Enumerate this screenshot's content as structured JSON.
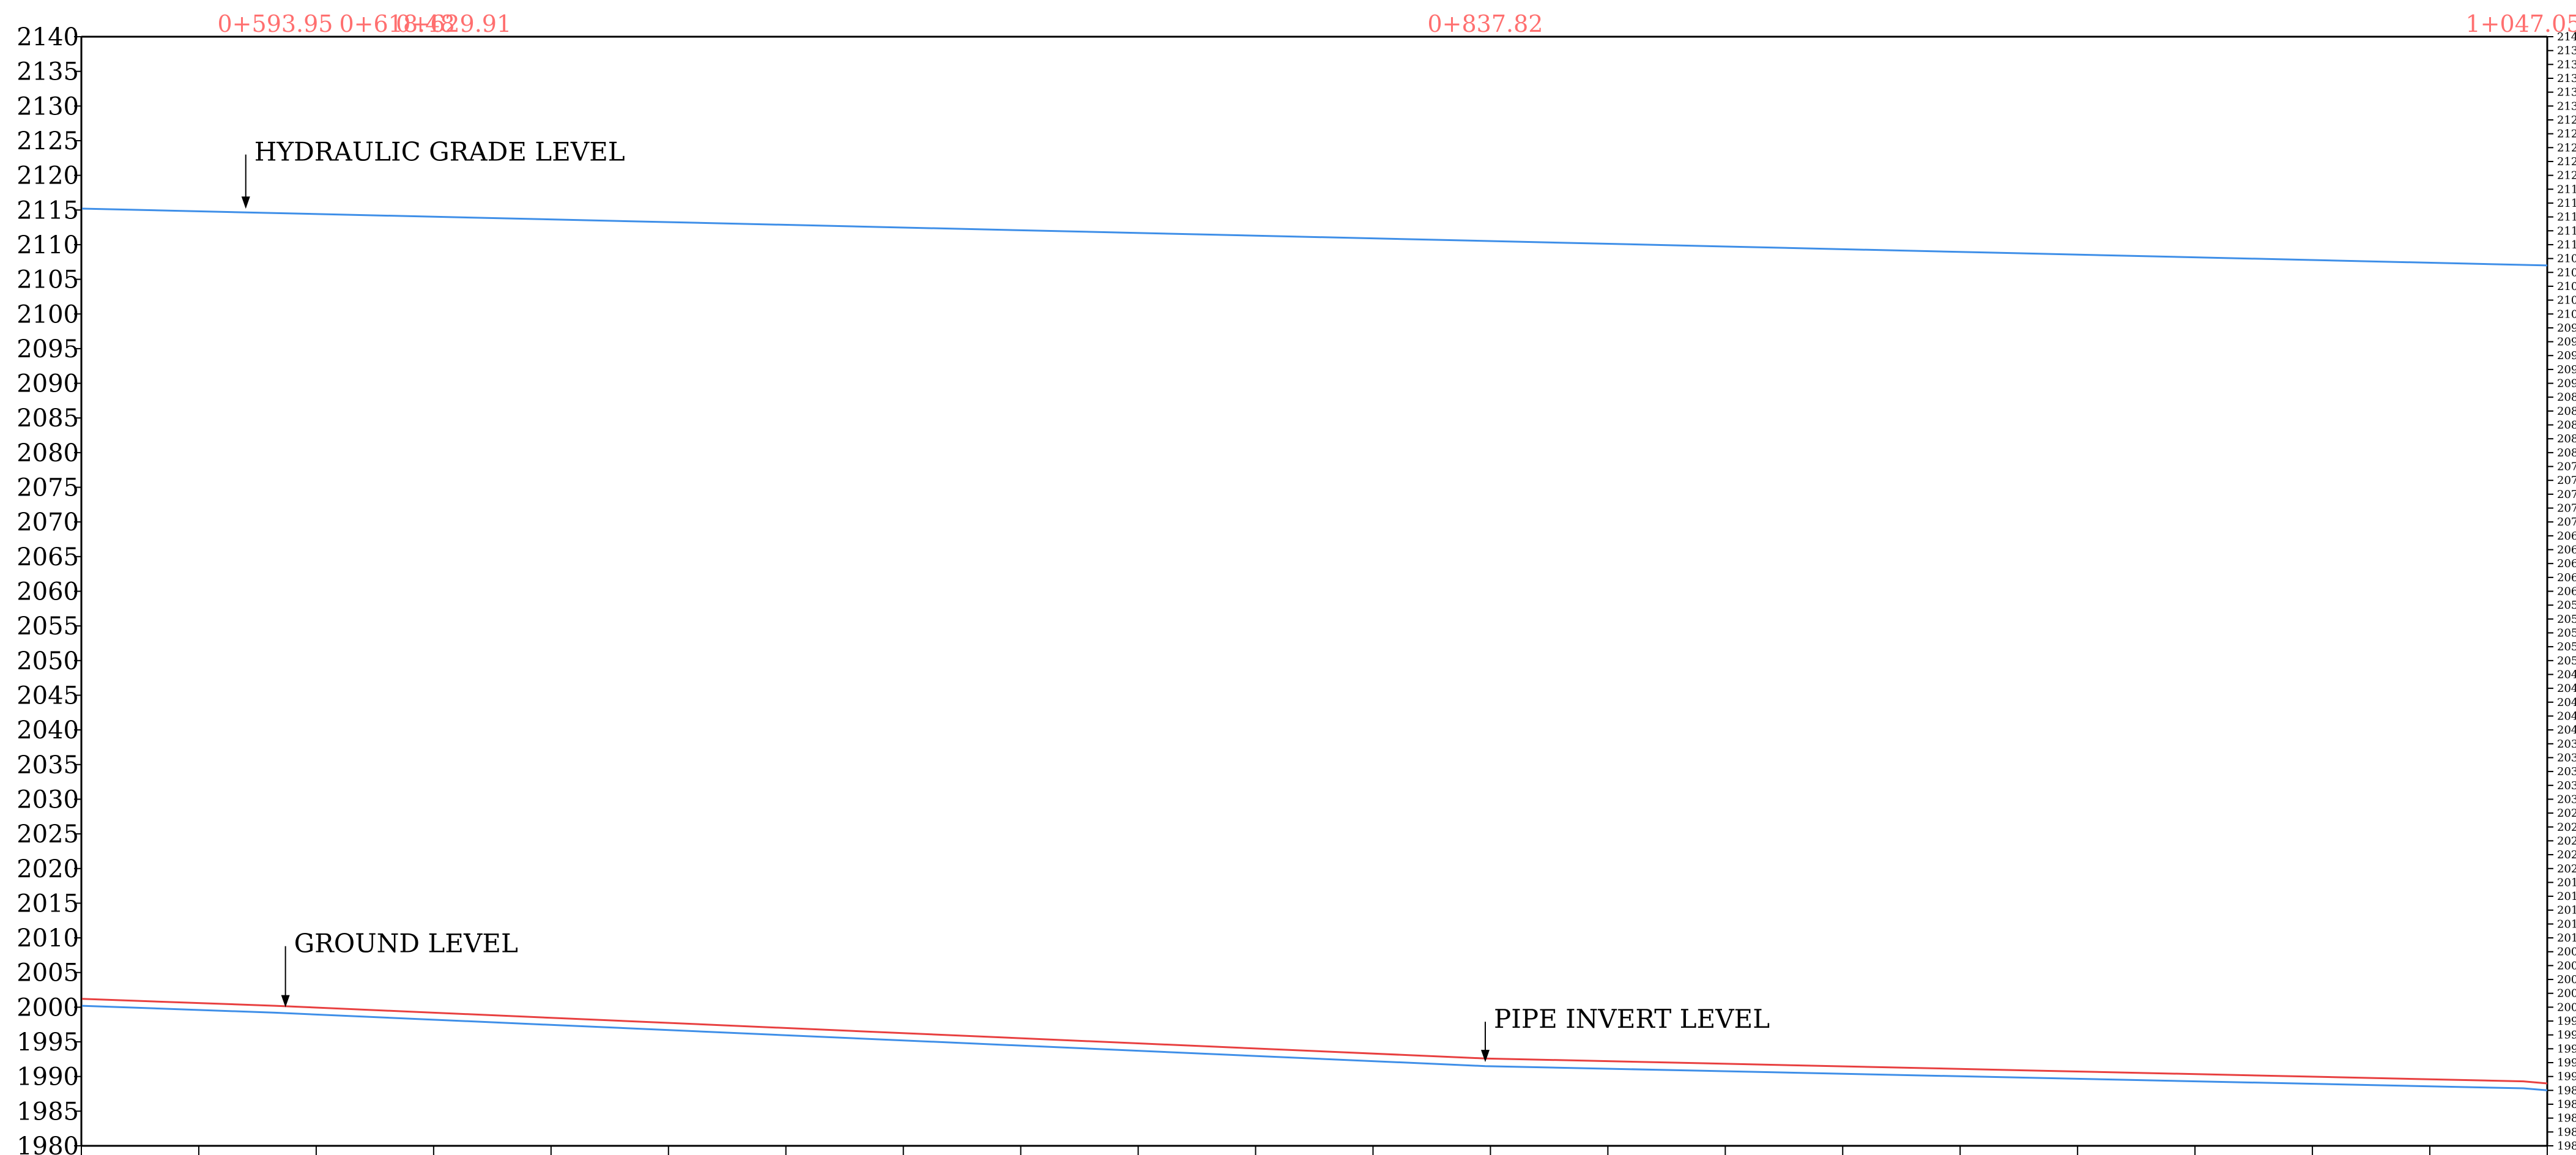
{
  "chart_data": {
    "type": "line",
    "title": "",
    "xlabel": "",
    "ylabel": "",
    "ylim": [
      1980,
      2140
    ],
    "y_major_step": 5,
    "y_minor_step": 2,
    "grid": false,
    "xlim": [
      593.95,
      1047.05
    ],
    "x_tick_count": 21,
    "stations": [
      {
        "label": "0+593.95",
        "x": 593.95
      },
      {
        "label": "0+618.48",
        "x": 618.48
      },
      {
        "label": "0+629.91",
        "x": 629.91
      },
      {
        "label": "0+837.82",
        "x": 837.82
      },
      {
        "label": "1+047.05",
        "x": 1047.05
      }
    ],
    "series": [
      {
        "key": "hgl",
        "color": "#3f8fe8",
        "x": [
          555.0,
          1065.0
        ],
        "y": [
          2115.2,
          2107.0
        ]
      },
      {
        "key": "ground",
        "color": "#e84040",
        "x": [
          555.0,
          593.95,
          837.82,
          1047.05,
          1065.0
        ],
        "y": [
          2001.2,
          2000.2,
          1992.6,
          1989.3,
          1989.0
        ]
      },
      {
        "key": "invert",
        "color": "#3f8fe8",
        "x": [
          555.0,
          593.95,
          837.82,
          1047.05,
          1065.0
        ],
        "y": [
          2000.2,
          1999.2,
          1991.5,
          1988.3,
          1988.0
        ]
      }
    ],
    "annotations": [
      {
        "text": "HYDRAULIC GRADE LEVEL",
        "x": 588.0,
        "y": 2115.0,
        "offset": 8
      },
      {
        "text": "GROUND LEVEL",
        "x": 596.0,
        "y": 1999.8,
        "offset": 9
      },
      {
        "text": "PIPE INVERT LEVEL",
        "x": 837.82,
        "y": 1991.9,
        "offset": 6
      }
    ]
  }
}
